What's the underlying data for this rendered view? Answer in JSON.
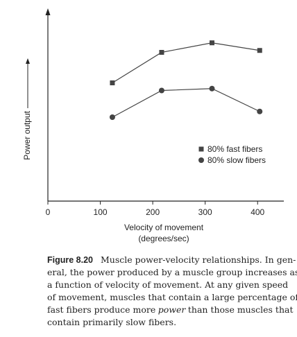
{
  "chart_data": {
    "type": "line",
    "y_label": "Power output",
    "x_label": [
      "Velocity of movement",
      "(degrees/sec)"
    ],
    "x": [
      123,
      217,
      313,
      404
    ],
    "series": [
      {
        "name": "80% fast fibers",
        "color": "#444444",
        "marker": "square",
        "values": [
          62,
          78,
          83,
          79
        ]
      },
      {
        "name": "80% slow fibers",
        "color": "#444444",
        "marker": "circle",
        "values": [
          44,
          58,
          59,
          47
        ]
      }
    ],
    "xlim": [
      0,
      450
    ],
    "xticks": [
      0,
      100,
      200,
      300,
      400
    ],
    "ylim": [
      0,
      100
    ],
    "legend": "center right",
    "grid": false
  },
  "caption": {
    "label": "Figure 8.20",
    "lines": [
      [
        "Muscle power-velocity relationships. In gen-"
      ],
      [
        "eral, the power produced by a muscle group increases as"
      ],
      [
        "a function of velocity of movement. At any given speed"
      ],
      [
        "of movement, muscles that contain a large percentage of"
      ],
      [
        "fast fibers produce more",
        "power",
        "than those muscles that"
      ],
      [
        "contain primarily slow fibers."
      ]
    ]
  }
}
